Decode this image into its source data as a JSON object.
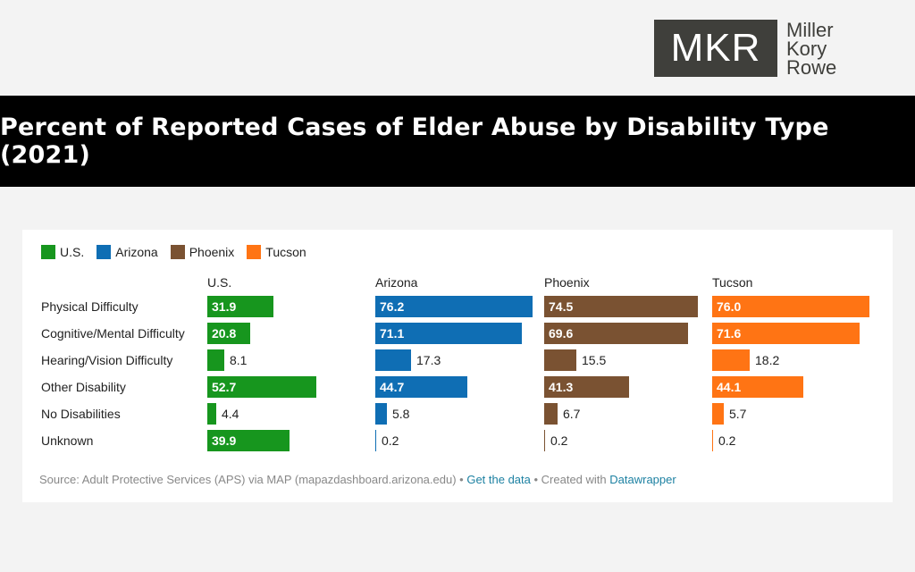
{
  "logo": {
    "mark": "MKR",
    "words": [
      "Miller",
      "Kory",
      "Rowe"
    ]
  },
  "title": "Percent of Reported Cases of Elder Abuse by Disability Type (2021)",
  "legend": [
    {
      "label": "U.S.",
      "color": "#17961e"
    },
    {
      "label": "Arizona",
      "color": "#0f6eb4"
    },
    {
      "label": "Phoenix",
      "color": "#7a5232"
    },
    {
      "label": "Tucson",
      "color": "#ff7414"
    }
  ],
  "chart_data": {
    "type": "bar",
    "orientation": "horizontal",
    "categories": [
      "Physical Difficulty",
      "Cognitive/Mental Difficulty",
      "Hearing/Vision Difficulty",
      "Other Disability",
      "No Disabilities",
      "Unknown"
    ],
    "series": [
      {
        "name": "U.S.",
        "color": "#17961e",
        "values": [
          31.9,
          20.8,
          8.1,
          52.7,
          4.4,
          39.9
        ]
      },
      {
        "name": "Arizona",
        "color": "#0f6eb4",
        "values": [
          76.2,
          71.1,
          17.3,
          44.7,
          5.8,
          0.2
        ]
      },
      {
        "name": "Phoenix",
        "color": "#7a5232",
        "values": [
          74.5,
          69.6,
          15.5,
          41.3,
          6.7,
          0.2
        ]
      },
      {
        "name": "Tucson",
        "color": "#ff7414",
        "values": [
          76.0,
          71.6,
          18.2,
          44.1,
          5.7,
          0.2
        ]
      }
    ],
    "value_format": "0.0",
    "xlim": [
      0,
      76.2
    ],
    "legend_position": "top-left",
    "grid": false
  },
  "footer": {
    "source": "Source: Adult Protective Services (APS) via MAP (mapazdashboard.arizona.edu)",
    "sep1": " • ",
    "get_data": "Get the data",
    "sep2": " • Created with ",
    "tool": "Datawrapper"
  }
}
